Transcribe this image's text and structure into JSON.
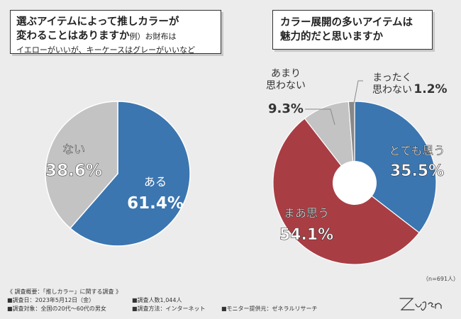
{
  "question1": {
    "line1": "選ぶアイテムによって推しカラーが",
    "line2": "変わることはありますか",
    "example_label": "例）",
    "example_text1": "お財布は",
    "example_text2": "イエローがいいが、キーケースはグレーがいいなど"
  },
  "question2": {
    "line1": "カラー展開の多いアイテムは",
    "line2": "魅力的だと思いますか"
  },
  "n_note": "（n=691人）",
  "footer": {
    "heading": "《 調査概要：「推しカラー」に関する調査 》",
    "date": "■調査日：2023年5月12日（金）",
    "count": "■調査人数1,044人",
    "target": "■調査対象：全国の20代〜60代の男女",
    "method": "■調査方法：インターネット",
    "provider": "■モニター提供元：ゼネラルリサーチ"
  },
  "signature": "Zuzen",
  "chart_data": [
    {
      "type": "pie",
      "categories": [
        "ある",
        "ない"
      ],
      "values": [
        61.4,
        38.6
      ],
      "value_labels": [
        "61.4%",
        "38.6%"
      ],
      "colors": [
        "#3b76b0",
        "#c3c3c3"
      ]
    },
    {
      "type": "pie",
      "donut": true,
      "categories": [
        "とても思う",
        "まあ思う",
        "あまり思わない",
        "まったく思わない"
      ],
      "category_lines": [
        [
          "とても思う"
        ],
        [
          "まあ思う"
        ],
        [
          "あまり",
          "思わない"
        ],
        [
          "まったく",
          "思わない"
        ]
      ],
      "values": [
        35.5,
        54.1,
        9.3,
        1.2
      ],
      "value_labels": [
        "35.5%",
        "54.1%",
        "9.3%",
        "1.2%"
      ],
      "colors": [
        "#3b76b0",
        "#a83e44",
        "#c3c3c3",
        "#888888"
      ]
    }
  ]
}
